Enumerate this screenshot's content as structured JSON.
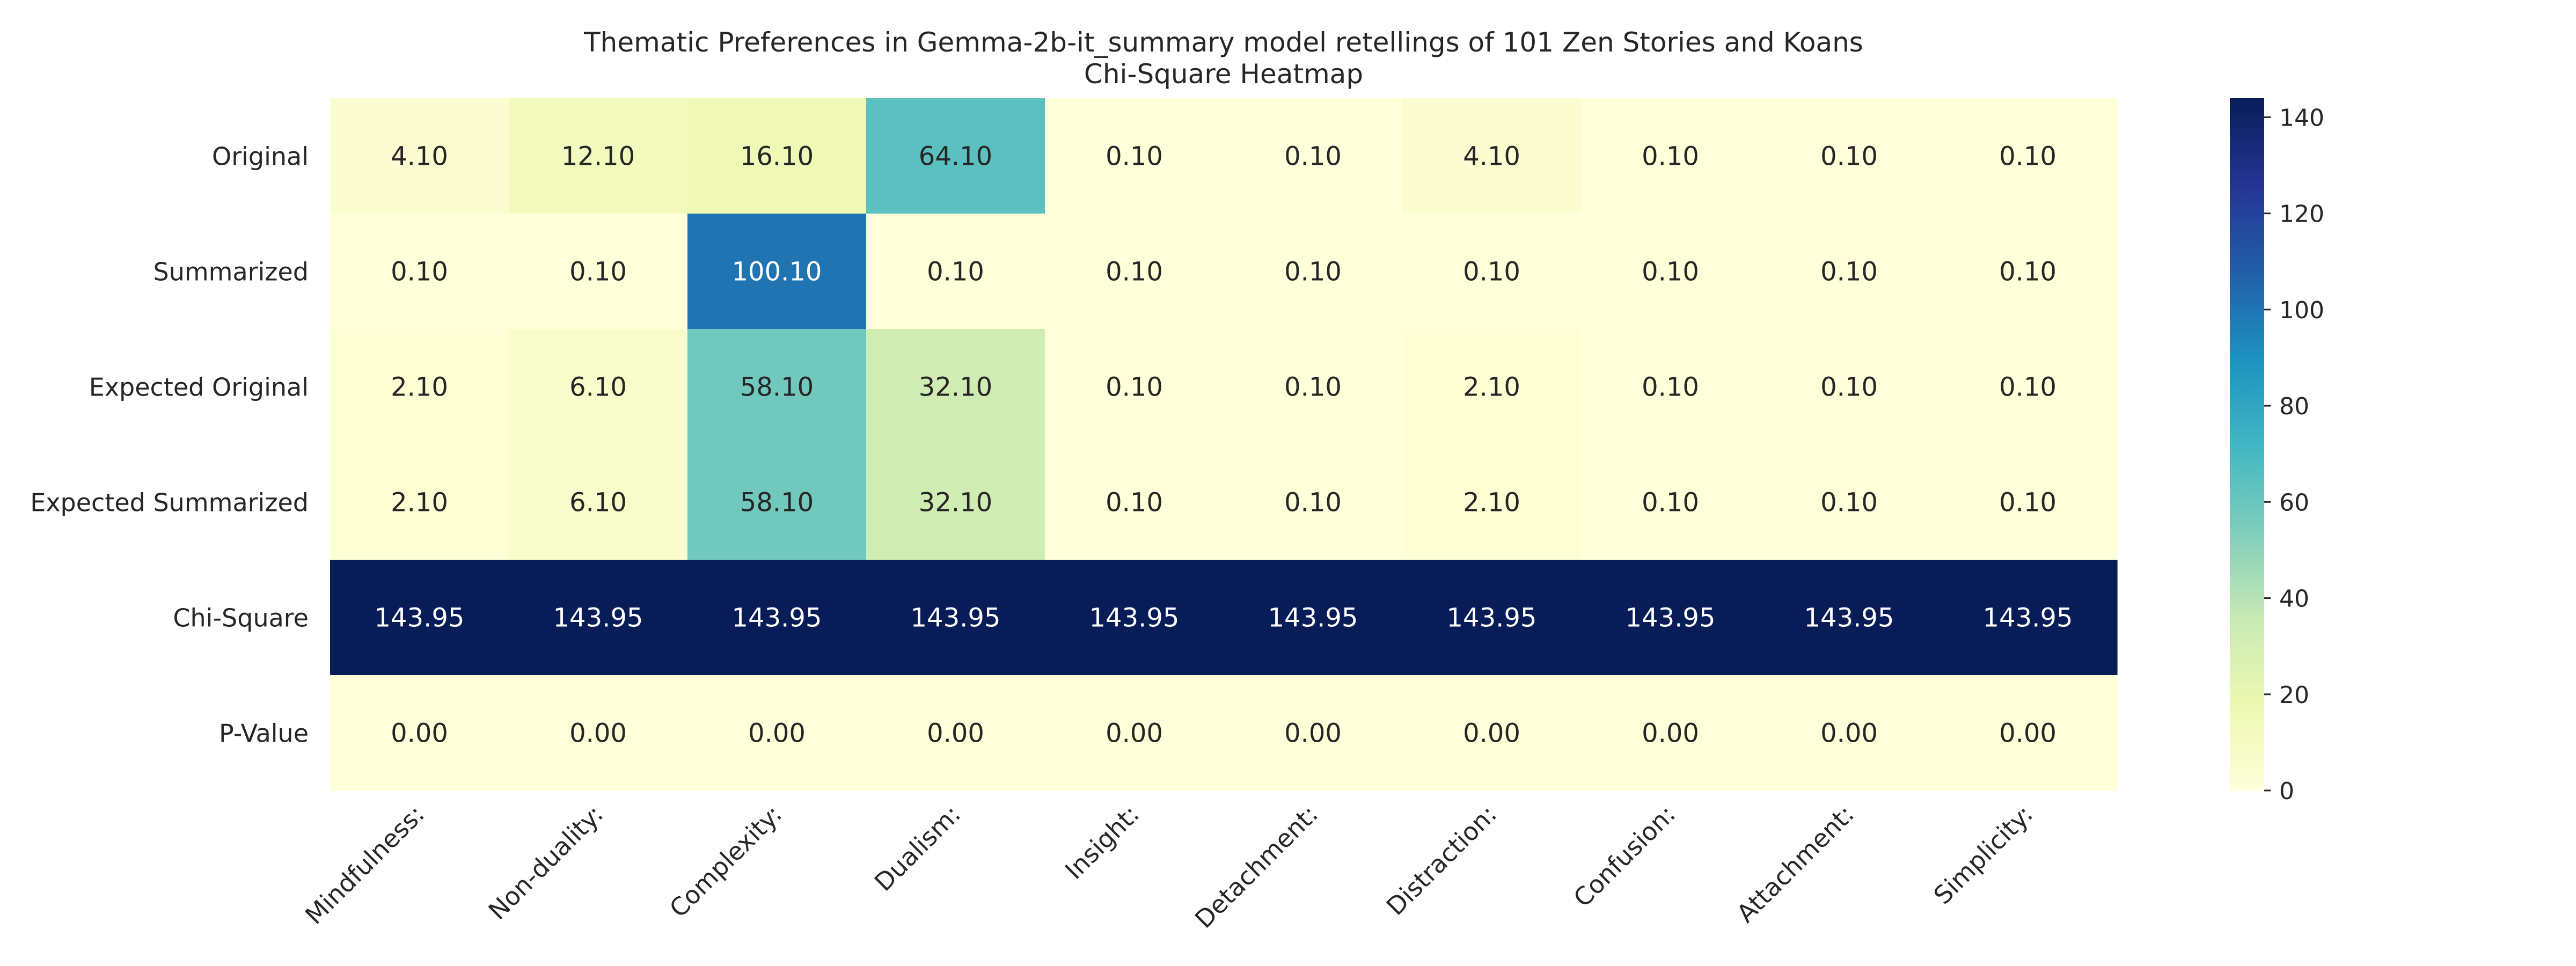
{
  "chart_data": {
    "type": "heatmap",
    "title": "Thematic Preferences in Gemma-2b-it_summary model retellings of 101 Zen Stories and Koans",
    "subtitle": "Chi-Square Heatmap",
    "xlabel": "",
    "ylabel": "",
    "columns": [
      "Mindfulness:",
      "Non-duality:",
      "Complexity:",
      "Dualism:",
      "Insight:",
      "Detachment:",
      "Distraction:",
      "Confusion:",
      "Attachment:",
      "Simplicity:"
    ],
    "rows": [
      "Original",
      "Summarized",
      "Expected Original",
      "Expected Summarized",
      "Chi-Square",
      "P-Value"
    ],
    "values": [
      [
        4.1,
        12.1,
        16.1,
        64.1,
        0.1,
        0.1,
        4.1,
        0.1,
        0.1,
        0.1
      ],
      [
        0.1,
        0.1,
        100.1,
        0.1,
        0.1,
        0.1,
        0.1,
        0.1,
        0.1,
        0.1
      ],
      [
        2.1,
        6.1,
        58.1,
        32.1,
        0.1,
        0.1,
        2.1,
        0.1,
        0.1,
        0.1
      ],
      [
        2.1,
        6.1,
        58.1,
        32.1,
        0.1,
        0.1,
        2.1,
        0.1,
        0.1,
        0.1
      ],
      [
        143.95,
        143.95,
        143.95,
        143.95,
        143.95,
        143.95,
        143.95,
        143.95,
        143.95,
        143.95
      ],
      [
        0.0,
        0.0,
        0.0,
        0.0,
        0.0,
        0.0,
        0.0,
        0.0,
        0.0,
        0.0
      ]
    ],
    "value_format": "2 decimals",
    "colormap": "YlGnBu",
    "colormap_stops": [
      "#ffffd9",
      "#edf8b1",
      "#c7e9b4",
      "#7fcdbb",
      "#41b6c4",
      "#1d91c0",
      "#225ea8",
      "#253494",
      "#081d58"
    ],
    "colorbar": {
      "range": [
        0,
        143.95
      ],
      "ticks": [
        0,
        20,
        40,
        60,
        80,
        100,
        120,
        140
      ]
    },
    "grid": false
  }
}
